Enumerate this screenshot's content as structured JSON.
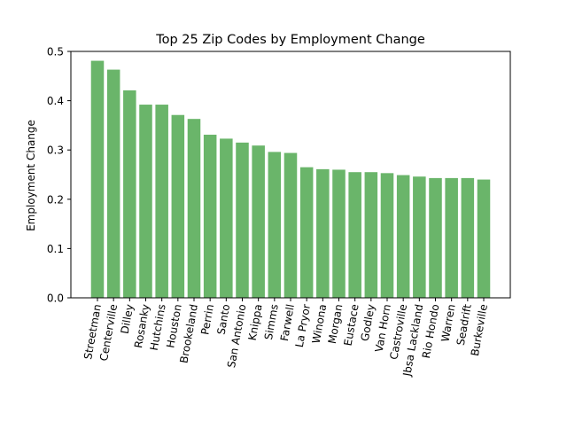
{
  "chart_data": {
    "type": "bar",
    "title": "Top 25 Zip Codes by Employment Change",
    "xlabel": "",
    "ylabel": "Employment Change",
    "ylim": [
      0,
      0.5
    ],
    "yticks": [
      "0.0",
      "0.1",
      "0.2",
      "0.3",
      "0.4",
      "0.5"
    ],
    "ytick_values": [
      0.0,
      0.1,
      0.2,
      0.3,
      0.4,
      0.5
    ],
    "bar_color": "#6ab56a",
    "grid": false,
    "categories": [
      "Streetman",
      "Centerville",
      "Dilley",
      "Rosanky",
      "Hutchins",
      "Houston",
      "Brookeland",
      "Perrin",
      "Santo",
      "San Antonio",
      "Knippa",
      "Simms",
      "Farwell",
      "La Pryor",
      "Winona",
      "Morgan",
      "Eustace",
      "Godley",
      "Van Horn",
      "Castroville",
      "Jbsa Lackland",
      "Rio Hondo",
      "Warren",
      "Seadrift",
      "Burkeville"
    ],
    "values": [
      0.481,
      0.463,
      0.421,
      0.392,
      0.392,
      0.371,
      0.363,
      0.331,
      0.323,
      0.315,
      0.309,
      0.296,
      0.294,
      0.265,
      0.261,
      0.26,
      0.255,
      0.255,
      0.253,
      0.249,
      0.246,
      0.243,
      0.243,
      0.243,
      0.24
    ]
  }
}
